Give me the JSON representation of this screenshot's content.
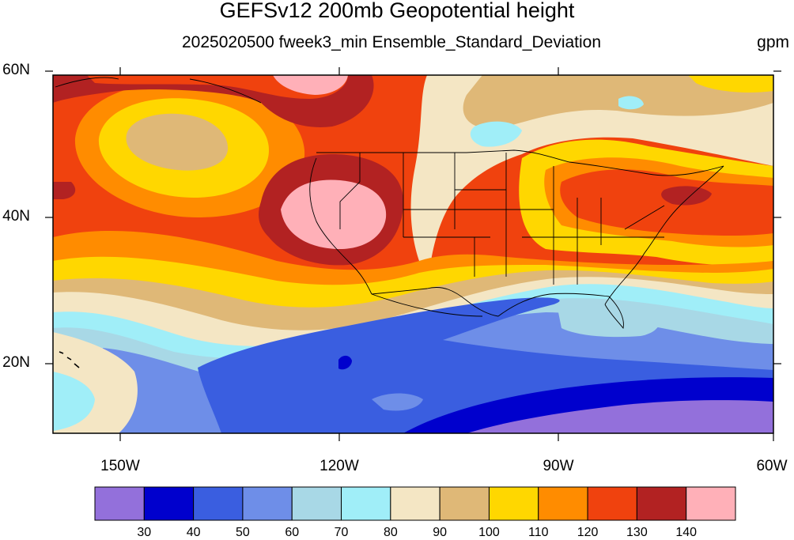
{
  "title": "GEFSv12 200mb Geopotential height",
  "subtitle": "2025020500 fweek3_min Ensemble_Standard_Deviation",
  "units": "gpm",
  "lat_labels": [
    "60N",
    "40N",
    "20N"
  ],
  "lon_labels": [
    "150W",
    "120W",
    "90W",
    "60W"
  ],
  "colorbar": {
    "ticks": [
      "30",
      "40",
      "50",
      "60",
      "70",
      "80",
      "90",
      "100",
      "110",
      "120",
      "130",
      "140"
    ],
    "colors": [
      "#9370db",
      "#0000cd",
      "#3a5ee0",
      "#6e8ee8",
      "#a8d8e6",
      "#a0eef8",
      "#f4e6c4",
      "#dfb877",
      "#ffd700",
      "#ff8c00",
      "#f0420e",
      "#b22222",
      "#ffb0b8"
    ]
  }
}
